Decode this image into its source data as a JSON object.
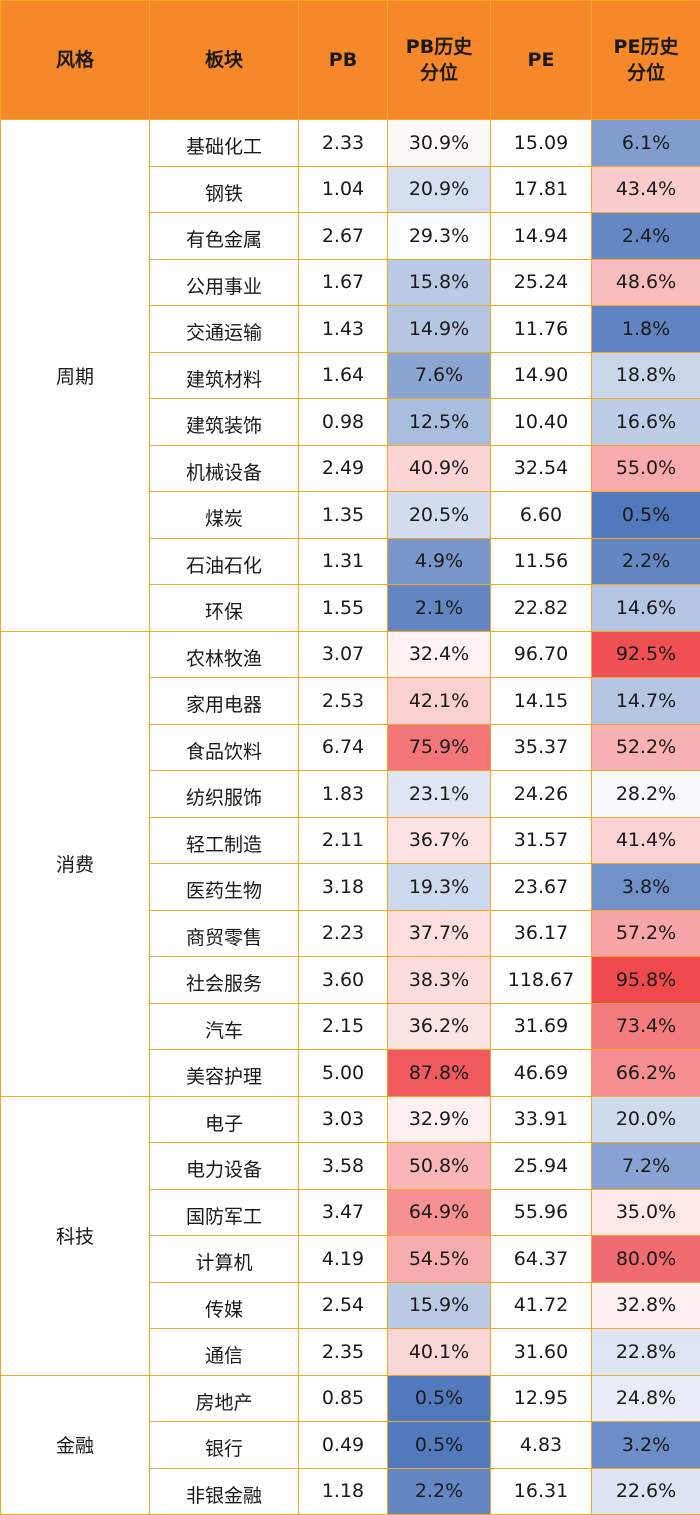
{
  "headers": {
    "style": "风格",
    "sector": "板块",
    "pb": "PB",
    "pb_pct_line1": "PB历史",
    "pb_pct_line2": "分位",
    "pe": "PE",
    "pe_pct_line1": "PE历史",
    "pe_pct_line2": "分位"
  },
  "groups": [
    {
      "style": "周期",
      "rows": [
        {
          "sector": "基础化工",
          "pb": "2.33",
          "pb_pct": "30.9%",
          "pe": "15.09",
          "pe_pct": "6.1%"
        },
        {
          "sector": "钢铁",
          "pb": "1.04",
          "pb_pct": "20.9%",
          "pe": "17.81",
          "pe_pct": "43.4%"
        },
        {
          "sector": "有色金属",
          "pb": "2.67",
          "pb_pct": "29.3%",
          "pe": "14.94",
          "pe_pct": "2.4%"
        },
        {
          "sector": "公用事业",
          "pb": "1.67",
          "pb_pct": "15.8%",
          "pe": "25.24",
          "pe_pct": "48.6%"
        },
        {
          "sector": "交通运输",
          "pb": "1.43",
          "pb_pct": "14.9%",
          "pe": "11.76",
          "pe_pct": "1.8%"
        },
        {
          "sector": "建筑材料",
          "pb": "1.64",
          "pb_pct": "7.6%",
          "pe": "14.90",
          "pe_pct": "18.8%"
        },
        {
          "sector": "建筑装饰",
          "pb": "0.98",
          "pb_pct": "12.5%",
          "pe": "10.40",
          "pe_pct": "16.6%"
        },
        {
          "sector": "机械设备",
          "pb": "2.49",
          "pb_pct": "40.9%",
          "pe": "32.54",
          "pe_pct": "55.0%"
        },
        {
          "sector": "煤炭",
          "pb": "1.35",
          "pb_pct": "20.5%",
          "pe": "6.60",
          "pe_pct": "0.5%"
        },
        {
          "sector": "石油石化",
          "pb": "1.31",
          "pb_pct": "4.9%",
          "pe": "11.56",
          "pe_pct": "2.2%"
        },
        {
          "sector": "环保",
          "pb": "1.55",
          "pb_pct": "2.1%",
          "pe": "22.82",
          "pe_pct": "14.6%"
        }
      ]
    },
    {
      "style": "消费",
      "rows": [
        {
          "sector": "农林牧渔",
          "pb": "3.07",
          "pb_pct": "32.4%",
          "pe": "96.70",
          "pe_pct": "92.5%"
        },
        {
          "sector": "家用电器",
          "pb": "2.53",
          "pb_pct": "42.1%",
          "pe": "14.15",
          "pe_pct": "14.7%"
        },
        {
          "sector": "食品饮料",
          "pb": "6.74",
          "pb_pct": "75.9%",
          "pe": "35.37",
          "pe_pct": "52.2%"
        },
        {
          "sector": "纺织服饰",
          "pb": "1.83",
          "pb_pct": "23.1%",
          "pe": "24.26",
          "pe_pct": "28.2%"
        },
        {
          "sector": "轻工制造",
          "pb": "2.11",
          "pb_pct": "36.7%",
          "pe": "31.57",
          "pe_pct": "41.4%"
        },
        {
          "sector": "医药生物",
          "pb": "3.18",
          "pb_pct": "19.3%",
          "pe": "23.67",
          "pe_pct": "3.8%"
        },
        {
          "sector": "商贸零售",
          "pb": "2.23",
          "pb_pct": "37.7%",
          "pe": "36.17",
          "pe_pct": "57.2%"
        },
        {
          "sector": "社会服务",
          "pb": "3.60",
          "pb_pct": "38.3%",
          "pe": "118.67",
          "pe_pct": "95.8%"
        },
        {
          "sector": "汽车",
          "pb": "2.15",
          "pb_pct": "36.2%",
          "pe": "31.69",
          "pe_pct": "73.4%"
        },
        {
          "sector": "美容护理",
          "pb": "5.00",
          "pb_pct": "87.8%",
          "pe": "46.69",
          "pe_pct": "66.2%"
        }
      ]
    },
    {
      "style": "科技",
      "rows": [
        {
          "sector": "电子",
          "pb": "3.03",
          "pb_pct": "32.9%",
          "pe": "33.91",
          "pe_pct": "20.0%"
        },
        {
          "sector": "电力设备",
          "pb": "3.58",
          "pb_pct": "50.8%",
          "pe": "25.94",
          "pe_pct": "7.2%"
        },
        {
          "sector": "国防军工",
          "pb": "3.47",
          "pb_pct": "64.9%",
          "pe": "55.96",
          "pe_pct": "35.0%"
        },
        {
          "sector": "计算机",
          "pb": "4.19",
          "pb_pct": "54.5%",
          "pe": "64.37",
          "pe_pct": "80.0%"
        },
        {
          "sector": "传媒",
          "pb": "2.54",
          "pb_pct": "15.9%",
          "pe": "41.72",
          "pe_pct": "32.8%"
        },
        {
          "sector": "通信",
          "pb": "2.35",
          "pb_pct": "40.1%",
          "pe": "31.60",
          "pe_pct": "22.8%"
        }
      ]
    },
    {
      "style": "金融",
      "rows": [
        {
          "sector": "房地产",
          "pb": "0.85",
          "pb_pct": "0.5%",
          "pe": "12.95",
          "pe_pct": "24.8%"
        },
        {
          "sector": "银行",
          "pb": "0.49",
          "pb_pct": "0.5%",
          "pe": "4.83",
          "pe_pct": "3.2%"
        },
        {
          "sector": "非银金融",
          "pb": "1.18",
          "pb_pct": "2.2%",
          "pe": "16.31",
          "pe_pct": "22.6%"
        }
      ]
    }
  ],
  "colors": {
    "header_bg": "#f7882a",
    "border": "#f5a623",
    "scale_low": "#4a73b9",
    "scale_mid": "#ffffff",
    "scale_high": "#ee4a4e"
  }
}
